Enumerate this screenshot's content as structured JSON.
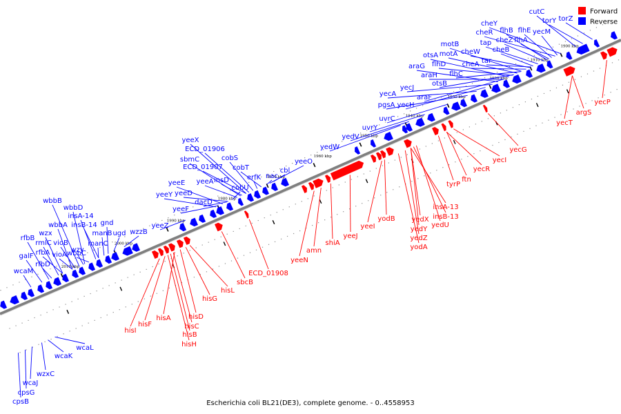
{
  "caption": "Escherichia coli BL21(DE3), complete genome. - 0..4558953",
  "legend": [
    {
      "label": "Forward",
      "color": "#ff0000"
    },
    {
      "label": "Reverse",
      "color": "#0000ff"
    }
  ],
  "colors": {
    "forward": "#ff0000",
    "reverse": "#0000ff",
    "backbone": "#7f7f7f"
  },
  "scale_ticks": [
    "1900 kbp",
    "1910 kbp",
    "1920 kbp",
    "1930 kbp",
    "1940 kbp",
    "1950 kbp",
    "1960 kbp",
    "1970 kbp",
    "1980 kbp",
    "1990 kbp",
    "2000 kbp",
    "2010 kbp"
  ],
  "reverse_genes": [
    {
      "name": "cutC"
    },
    {
      "name": "torY"
    },
    {
      "name": "torZ"
    },
    {
      "name": "cheY"
    },
    {
      "name": "cheR"
    },
    {
      "name": "flhB"
    },
    {
      "name": "flhE"
    },
    {
      "name": "yecM"
    },
    {
      "name": "tap"
    },
    {
      "name": "cheZ"
    },
    {
      "name": "flhA"
    },
    {
      "name": "motB"
    },
    {
      "name": "cheB"
    },
    {
      "name": "otsA"
    },
    {
      "name": "motA"
    },
    {
      "name": "cheW"
    },
    {
      "name": "araG"
    },
    {
      "name": "flhD"
    },
    {
      "name": "cheA"
    },
    {
      "name": "tar"
    },
    {
      "name": "araH"
    },
    {
      "name": "flhC"
    },
    {
      "name": "otsB"
    },
    {
      "name": "yecJ"
    },
    {
      "name": "yecA"
    },
    {
      "name": "araF"
    },
    {
      "name": "pgsA"
    },
    {
      "name": "yecH"
    },
    {
      "name": "uvrC"
    },
    {
      "name": "uvrY"
    },
    {
      "name": "yedV"
    },
    {
      "name": "yedW"
    },
    {
      "name": "yeeX"
    },
    {
      "name": "ECD_01906"
    },
    {
      "name": "sbmC"
    },
    {
      "name": "cobS"
    },
    {
      "name": "ECD_01907"
    },
    {
      "name": "cobT"
    },
    {
      "name": "yeeO"
    },
    {
      "name": "yeeE"
    },
    {
      "name": "yeeA"
    },
    {
      "name": "insD"
    },
    {
      "name": "cbl"
    },
    {
      "name": "erfK"
    },
    {
      "name": "nac"
    },
    {
      "name": "yeeY"
    },
    {
      "name": "yeeD"
    },
    {
      "name": "cobU"
    },
    {
      "name": "dacD"
    },
    {
      "name": "yeeF"
    },
    {
      "name": "wbbB"
    },
    {
      "name": "wbbD"
    },
    {
      "name": "insA-14"
    },
    {
      "name": "wbbA"
    },
    {
      "name": "insB-14"
    },
    {
      "name": "yeeZ"
    },
    {
      "name": "wzx"
    },
    {
      "name": "gnd"
    },
    {
      "name": "rfbB"
    },
    {
      "name": "vioB"
    },
    {
      "name": "wbbC"
    },
    {
      "name": "manB"
    },
    {
      "name": "ugd"
    },
    {
      "name": "wzzB"
    },
    {
      "name": "rmlC"
    },
    {
      "name": "manC"
    },
    {
      "name": "galF"
    },
    {
      "name": "rfbA"
    },
    {
      "name": "wzy"
    },
    {
      "name": "vioA"
    },
    {
      "name": "rfbD"
    },
    {
      "name": "wcaM"
    }
  ],
  "forward_genes": [
    {
      "name": "yecG"
    },
    {
      "name": "yecI"
    },
    {
      "name": "yecR"
    },
    {
      "name": "tyrP"
    },
    {
      "name": "ftn"
    },
    {
      "name": "insA-13"
    },
    {
      "name": "insB-13"
    },
    {
      "name": "yedX"
    },
    {
      "name": "yedU"
    },
    {
      "name": "yedY"
    },
    {
      "name": "yodB"
    },
    {
      "name": "yedZ"
    },
    {
      "name": "yodA"
    },
    {
      "name": "yeeI"
    },
    {
      "name": "yeeJ"
    },
    {
      "name": "shiA"
    },
    {
      "name": "amn"
    },
    {
      "name": "yeeN"
    },
    {
      "name": "ECD_01908"
    },
    {
      "name": "sbcB"
    },
    {
      "name": "hisL"
    },
    {
      "name": "hisG"
    },
    {
      "name": "hisD"
    },
    {
      "name": "hisA"
    },
    {
      "name": "hisC"
    },
    {
      "name": "hisF"
    },
    {
      "name": "hisB"
    },
    {
      "name": "hisH"
    },
    {
      "name": "hisI"
    },
    {
      "name": "yecT"
    },
    {
      "name": "argS"
    },
    {
      "name": "yecP"
    }
  ],
  "lower_reverse_genes": [
    {
      "name": "wcaL"
    },
    {
      "name": "wcaK"
    },
    {
      "name": "wzxC"
    },
    {
      "name": "wcaJ"
    },
    {
      "name": "cpsG"
    },
    {
      "name": "cpsB"
    }
  ]
}
